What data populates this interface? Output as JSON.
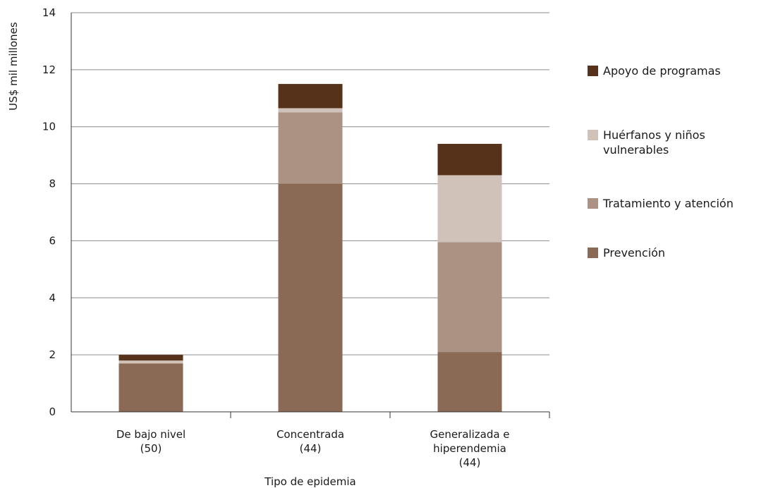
{
  "chart_data": {
    "type": "bar",
    "stacked": true,
    "categories": [
      [
        "De bajo nivel",
        "(50)"
      ],
      [
        "Concentrada",
        "(44)"
      ],
      [
        "Generalizada e",
        "hiperendemia",
        "(44)"
      ]
    ],
    "series": [
      {
        "name": "Prevención",
        "color": "#8a6a55",
        "values": [
          1.7,
          8.0,
          2.1
        ]
      },
      {
        "name": "Tratamiento y atención",
        "color": "#ab9282",
        "values": [
          0.0,
          2.5,
          3.85
        ]
      },
      {
        "name": "Huérfanos y niños vulnerables",
        "color": "#d0c2b8",
        "values": [
          0.1,
          0.15,
          2.35
        ]
      },
      {
        "name": "Apoyo de programas",
        "color": "#553219",
        "values": [
          0.2,
          0.85,
          1.1
        ]
      }
    ],
    "legend_order": [
      3,
      2,
      1,
      0
    ],
    "legend_labels": [
      [
        "Apoyo de programas"
      ],
      [
        "Huérfanos y niños",
        "vulnerables"
      ],
      [
        "Tratamiento y atención"
      ],
      [
        "Prevención"
      ]
    ],
    "xlabel": "Tipo de epidemia",
    "ylabel": "US$ mil millones",
    "ylim": [
      0,
      14
    ],
    "yticks": [
      0,
      2,
      4,
      6,
      8,
      10,
      12,
      14
    ],
    "grid": true,
    "legend_position": "right"
  }
}
